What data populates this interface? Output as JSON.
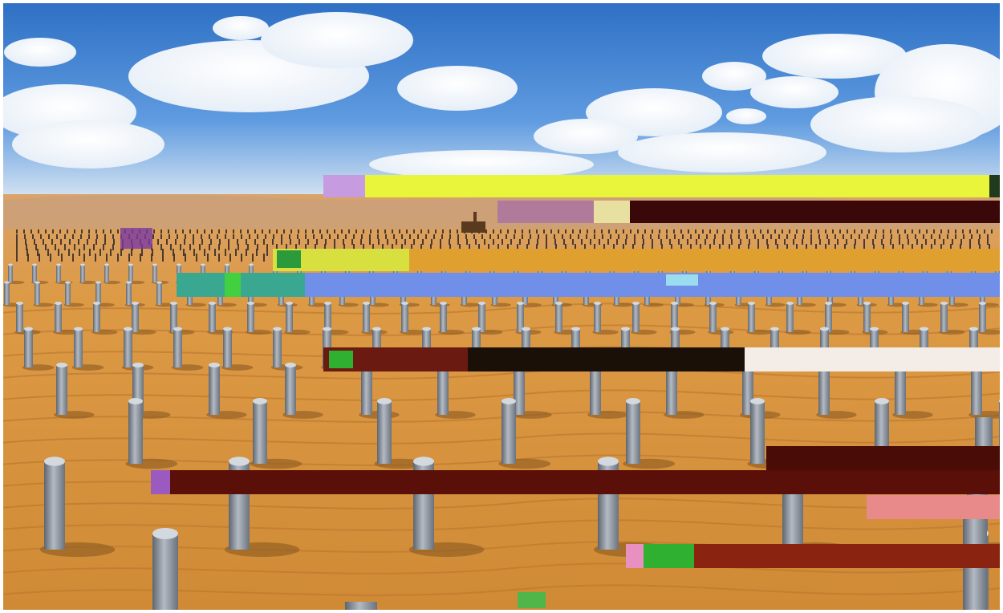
{
  "scene": {
    "subject": "desert-photovoltaic-foundation-piles",
    "colors": {
      "sky_top": "#2d6fc4",
      "sky_mid": "#5f9be0",
      "sky_horizon": "#d9e6f2",
      "sand_far": "#d9a36a",
      "sand_mid": "#dd9a45",
      "sand_near": "#d08a36",
      "pile": "#8e97a3",
      "pile_shadow": "#5d6570",
      "glitch_yellow": "#e8f53a",
      "glitch_maroon": "#5a0f08",
      "glitch_blue": "#6f8fe8",
      "glitch_dark": "#1a1008",
      "glitch_cream": "#f4ece6",
      "glitch_red": "#8a2410",
      "glitch_pink": "#e88a8a"
    }
  }
}
